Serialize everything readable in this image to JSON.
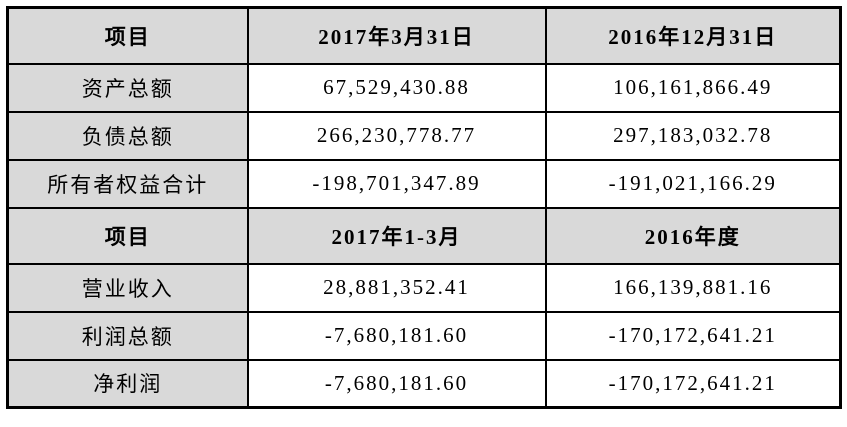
{
  "colors": {
    "header_bg": "#d9d9d9",
    "row_label_bg": "#d9d9d9",
    "value_bg": "#ffffff",
    "border": "#000000",
    "text": "#000000"
  },
  "sections": [
    {
      "header": {
        "item": "项目",
        "period1": "2017年3月31日",
        "period2": "2016年12月31日"
      },
      "rows": [
        {
          "label": "资产总额",
          "value1": "67,529,430.88",
          "value2": "106,161,866.49"
        },
        {
          "label": "负债总额",
          "value1": "266,230,778.77",
          "value2": "297,183,032.78"
        },
        {
          "label": "所有者权益合计",
          "value1": "-198,701,347.89",
          "value2": "-191,021,166.29"
        }
      ]
    },
    {
      "header": {
        "item": "项目",
        "period1": "2017年1-3月",
        "period2": "2016年度"
      },
      "rows": [
        {
          "label": "营业收入",
          "value1": "28,881,352.41",
          "value2": "166,139,881.16"
        },
        {
          "label": "利润总额",
          "value1": "-7,680,181.60",
          "value2": "-170,172,641.21"
        },
        {
          "label": "净利润",
          "value1": "-7,680,181.60",
          "value2": "-170,172,641.21"
        }
      ]
    }
  ]
}
